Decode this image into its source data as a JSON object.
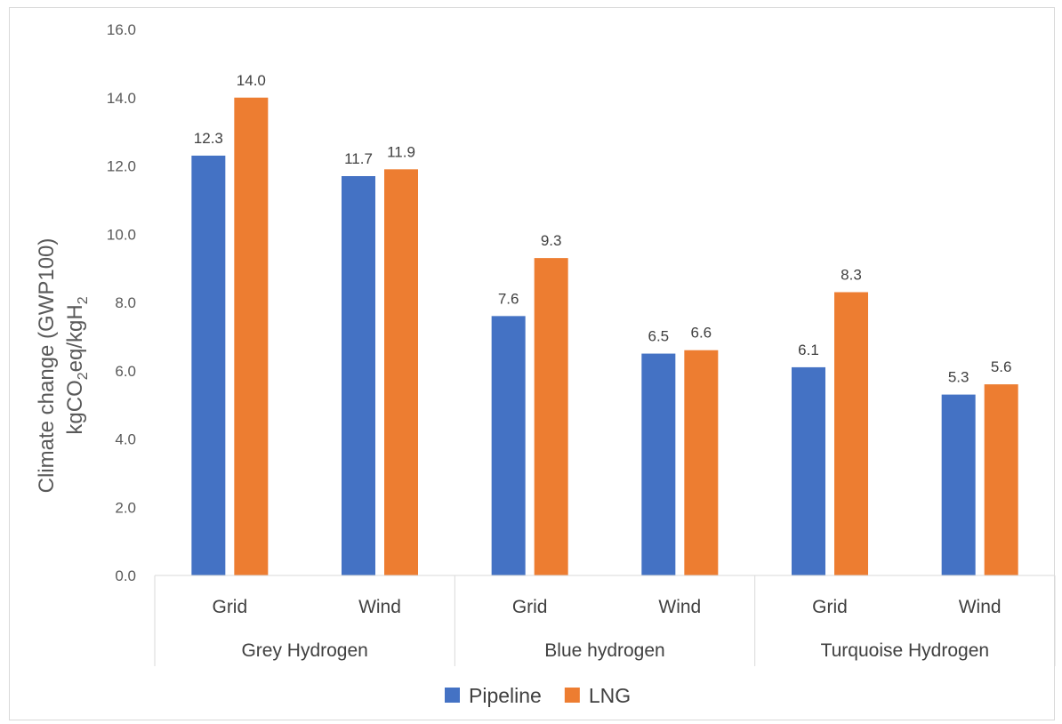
{
  "chart_data": {
    "type": "bar",
    "ylabel_line1": "Climate change (GWP100)",
    "ylabel_line2_parts": [
      "kgCO",
      "2",
      "eq/kgH",
      "2"
    ],
    "ylim": [
      0,
      16
    ],
    "yticks": [
      "0.0",
      "2.0",
      "4.0",
      "6.0",
      "8.0",
      "10.0",
      "12.0",
      "14.0",
      "16.0"
    ],
    "grid": false,
    "legend_position": "bottom",
    "categories": [
      "Grid",
      "Wind",
      "Grid",
      "Wind",
      "Grid",
      "Wind"
    ],
    "groups": [
      {
        "label": "Grey Hydrogen",
        "span": [
          0,
          1
        ]
      },
      {
        "label": "Blue hydrogen",
        "span": [
          2,
          3
        ]
      },
      {
        "label": "Turquoise Hydrogen",
        "span": [
          4,
          5
        ]
      }
    ],
    "series": [
      {
        "name": "Pipeline",
        "color": "#4472C4",
        "values": [
          12.3,
          11.7,
          7.6,
          6.5,
          6.1,
          5.3
        ],
        "labels": [
          "12.3",
          "11.7",
          "7.6",
          "6.5",
          "6.1",
          "5.3"
        ]
      },
      {
        "name": "LNG",
        "color": "#ED7D31",
        "values": [
          14.0,
          11.9,
          9.3,
          6.6,
          8.3,
          5.6
        ],
        "labels": [
          "14.0",
          "11.9",
          "9.3",
          "6.6",
          "8.3",
          "5.6"
        ]
      }
    ]
  }
}
